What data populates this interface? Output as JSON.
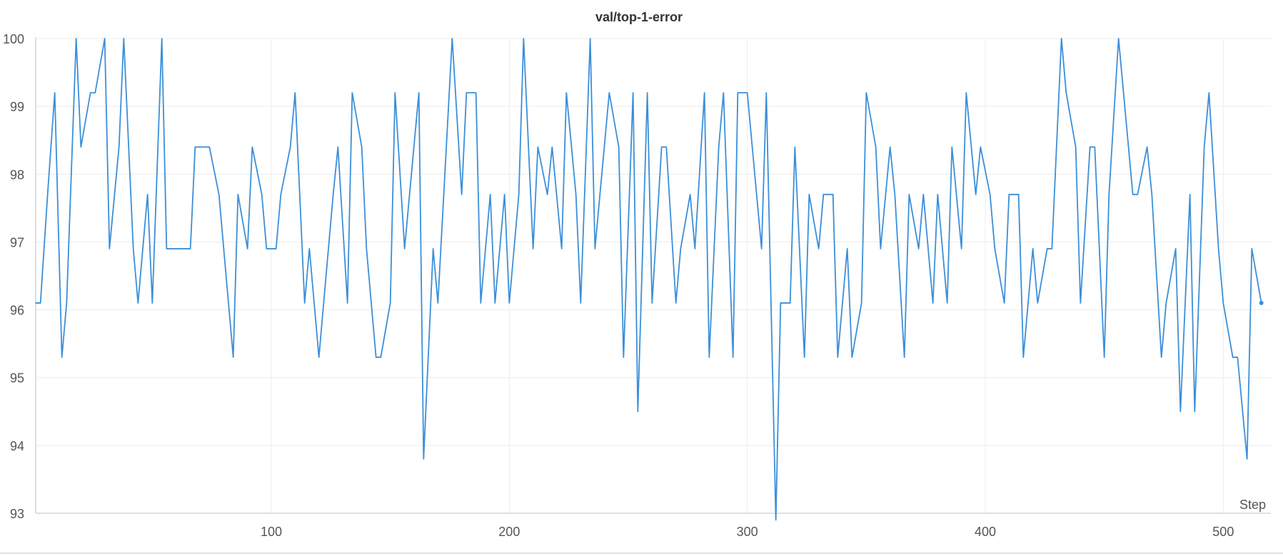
{
  "chart_data": {
    "type": "line",
    "title": "val/top-1-error",
    "xlabel": "Step",
    "ylabel": "",
    "xlim": [
      1,
      520
    ],
    "ylim": [
      93,
      100
    ],
    "x_ticks": [
      100,
      200,
      300,
      400,
      500
    ],
    "y_ticks": [
      93,
      94,
      95,
      96,
      97,
      98,
      99,
      100
    ],
    "grid": true,
    "legend": "none",
    "series": [
      {
        "color": "#3b8fd9",
        "points": [
          [
            1,
            96.1
          ],
          [
            3,
            96.1
          ],
          [
            6,
            97.7
          ],
          [
            9,
            99.2
          ],
          [
            12,
            95.3
          ],
          [
            14,
            96.1
          ],
          [
            18,
            100
          ],
          [
            20,
            98.4
          ],
          [
            24,
            99.2
          ],
          [
            26,
            99.2
          ],
          [
            30,
            100
          ],
          [
            32,
            96.9
          ],
          [
            36,
            98.4
          ],
          [
            38,
            100
          ],
          [
            42,
            96.9
          ],
          [
            44,
            96.1
          ],
          [
            48,
            97.7
          ],
          [
            50,
            96.1
          ],
          [
            54,
            100
          ],
          [
            56,
            96.9
          ],
          [
            60,
            96.9
          ],
          [
            64,
            96.9
          ],
          [
            66,
            96.9
          ],
          [
            68,
            98.4
          ],
          [
            72,
            98.4
          ],
          [
            74,
            98.4
          ],
          [
            78,
            97.7
          ],
          [
            84,
            95.3
          ],
          [
            86,
            97.7
          ],
          [
            90,
            96.9
          ],
          [
            92,
            98.4
          ],
          [
            96,
            97.7
          ],
          [
            98,
            96.9
          ],
          [
            102,
            96.9
          ],
          [
            104,
            97.7
          ],
          [
            108,
            98.4
          ],
          [
            110,
            99.2
          ],
          [
            114,
            96.1
          ],
          [
            116,
            96.9
          ],
          [
            120,
            95.3
          ],
          [
            126,
            97.7
          ],
          [
            128,
            98.4
          ],
          [
            132,
            96.1
          ],
          [
            134,
            99.2
          ],
          [
            138,
            98.4
          ],
          [
            140,
            96.9
          ],
          [
            144,
            95.3
          ],
          [
            146,
            95.3
          ],
          [
            150,
            96.1
          ],
          [
            152,
            99.2
          ],
          [
            156,
            96.9
          ],
          [
            162,
            99.2
          ],
          [
            164,
            93.8
          ],
          [
            168,
            96.9
          ],
          [
            170,
            96.1
          ],
          [
            176,
            100
          ],
          [
            180,
            97.7
          ],
          [
            182,
            99.2
          ],
          [
            186,
            99.2
          ],
          [
            188,
            96.1
          ],
          [
            192,
            97.7
          ],
          [
            194,
            96.1
          ],
          [
            198,
            97.7
          ],
          [
            200,
            96.1
          ],
          [
            204,
            97.7
          ],
          [
            206,
            100
          ],
          [
            210,
            96.9
          ],
          [
            212,
            98.4
          ],
          [
            216,
            97.7
          ],
          [
            218,
            98.4
          ],
          [
            222,
            96.9
          ],
          [
            224,
            99.2
          ],
          [
            228,
            97.7
          ],
          [
            230,
            96.1
          ],
          [
            234,
            100
          ],
          [
            236,
            96.9
          ],
          [
            242,
            99.2
          ],
          [
            246,
            98.4
          ],
          [
            248,
            95.3
          ],
          [
            252,
            99.2
          ],
          [
            254,
            94.5
          ],
          [
            258,
            99.2
          ],
          [
            260,
            96.1
          ],
          [
            264,
            98.4
          ],
          [
            266,
            98.4
          ],
          [
            270,
            96.1
          ],
          [
            272,
            96.9
          ],
          [
            276,
            97.7
          ],
          [
            278,
            96.9
          ],
          [
            282,
            99.2
          ],
          [
            284,
            95.3
          ],
          [
            288,
            98.4
          ],
          [
            290,
            99.2
          ],
          [
            294,
            95.3
          ],
          [
            296,
            99.2
          ],
          [
            300,
            99.2
          ],
          [
            306,
            96.9
          ],
          [
            308,
            99.2
          ],
          [
            312,
            92.9
          ],
          [
            314,
            96.1
          ],
          [
            318,
            96.1
          ],
          [
            320,
            98.4
          ],
          [
            324,
            95.3
          ],
          [
            326,
            97.7
          ],
          [
            330,
            96.9
          ],
          [
            332,
            97.7
          ],
          [
            336,
            97.7
          ],
          [
            338,
            95.3
          ],
          [
            342,
            96.9
          ],
          [
            344,
            95.3
          ],
          [
            348,
            96.1
          ],
          [
            350,
            99.2
          ],
          [
            354,
            98.4
          ],
          [
            356,
            96.9
          ],
          [
            360,
            98.4
          ],
          [
            362,
            97.7
          ],
          [
            366,
            95.3
          ],
          [
            368,
            97.7
          ],
          [
            372,
            96.9
          ],
          [
            374,
            97.7
          ],
          [
            378,
            96.1
          ],
          [
            380,
            97.7
          ],
          [
            384,
            96.1
          ],
          [
            386,
            98.4
          ],
          [
            390,
            96.9
          ],
          [
            392,
            99.2
          ],
          [
            396,
            97.7
          ],
          [
            398,
            98.4
          ],
          [
            402,
            97.7
          ],
          [
            404,
            96.9
          ],
          [
            408,
            96.1
          ],
          [
            410,
            97.7
          ],
          [
            414,
            97.7
          ],
          [
            416,
            95.3
          ],
          [
            420,
            96.9
          ],
          [
            422,
            96.1
          ],
          [
            426,
            96.9
          ],
          [
            428,
            96.9
          ],
          [
            432,
            100
          ],
          [
            434,
            99.2
          ],
          [
            438,
            98.4
          ],
          [
            440,
            96.1
          ],
          [
            444,
            98.4
          ],
          [
            446,
            98.4
          ],
          [
            450,
            95.3
          ],
          [
            452,
            97.7
          ],
          [
            456,
            100
          ],
          [
            462,
            97.7
          ],
          [
            464,
            97.7
          ],
          [
            468,
            98.4
          ],
          [
            470,
            97.7
          ],
          [
            474,
            95.3
          ],
          [
            476,
            96.1
          ],
          [
            480,
            96.9
          ],
          [
            482,
            94.5
          ],
          [
            486,
            97.7
          ],
          [
            488,
            94.5
          ],
          [
            492,
            98.4
          ],
          [
            494,
            99.2
          ],
          [
            498,
            96.9
          ],
          [
            500,
            96.1
          ],
          [
            504,
            95.3
          ],
          [
            506,
            95.3
          ],
          [
            510,
            93.8
          ],
          [
            512,
            96.9
          ],
          [
            516,
            96.1
          ]
        ]
      }
    ]
  }
}
